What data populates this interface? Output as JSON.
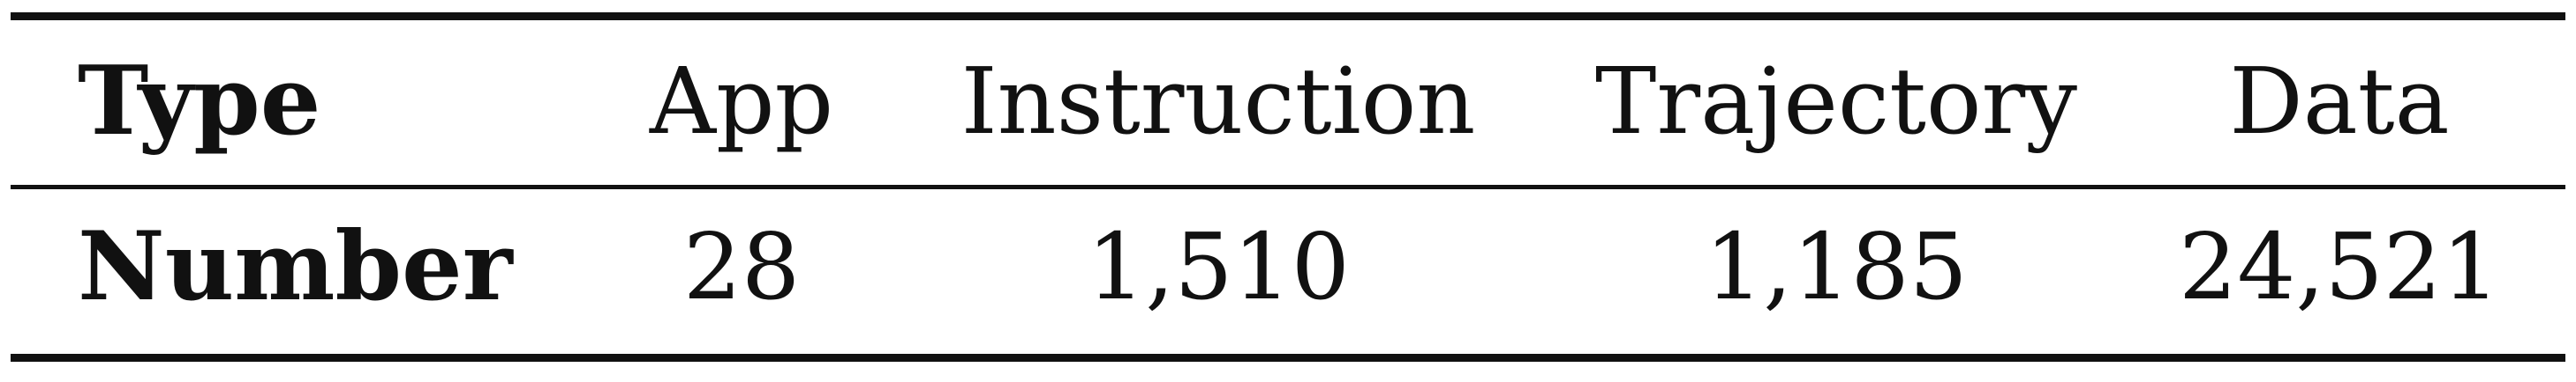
{
  "table": {
    "header": {
      "label": "Type",
      "cells": [
        "App",
        "Instruction",
        "Trajectory",
        "Data"
      ]
    },
    "row": {
      "label": "Number",
      "cells": [
        "28",
        "1,510",
        "1,185",
        "24,521"
      ]
    }
  }
}
